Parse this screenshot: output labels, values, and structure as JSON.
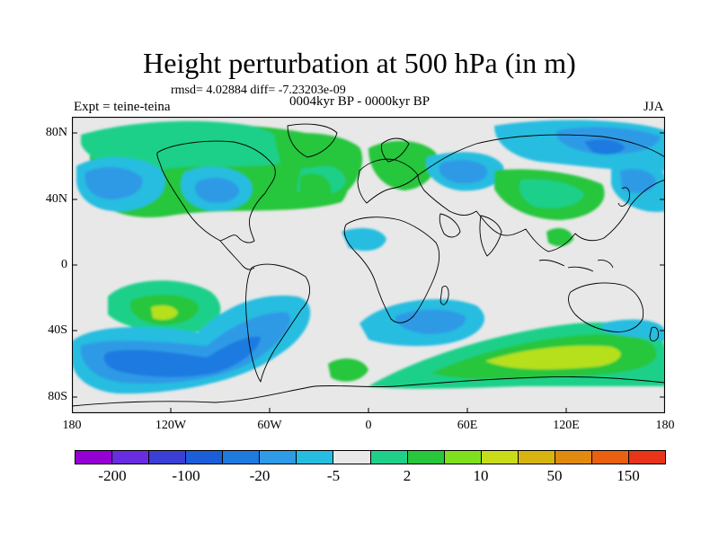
{
  "plot": {
    "title": "Height perturbation at 500 hPa (in m)",
    "stats": "rmsd= 4.02884 diff= -7.23203e-09",
    "experiment": "Expt = teine-teina",
    "period": "0004kyr BP - 0000kyr BP",
    "season": "JJA"
  },
  "axes": {
    "y_ticks": [
      "80N",
      "40N",
      "0",
      "40S",
      "80S"
    ],
    "x_ticks": [
      "180",
      "120W",
      "60W",
      "0",
      "60E",
      "120E",
      "180"
    ]
  },
  "colorbar": {
    "labels": [
      "-200",
      "-100",
      "-20",
      "-5",
      "2",
      "10",
      "50",
      "150"
    ],
    "colors": [
      "#9400d3",
      "#6a2ce0",
      "#3b3fd6",
      "#1a5ed8",
      "#1f7ae0",
      "#2f9ae6",
      "#27bde0",
      "#e8e8e8",
      "#1fd08a",
      "#28c63c",
      "#7fe01e",
      "#c8dc1a",
      "#d8b410",
      "#e08a10",
      "#e86010",
      "#e83418"
    ]
  },
  "palette": {
    "neutral": "#e8e8e8",
    "pos_small": "#1fd08a",
    "pos_mid": "#28c63c",
    "pos_high": "#b6e01e",
    "neg_small": "#27bde0",
    "neg_mid": "#2f9ae6",
    "neg_high": "#1f7ae0"
  }
}
